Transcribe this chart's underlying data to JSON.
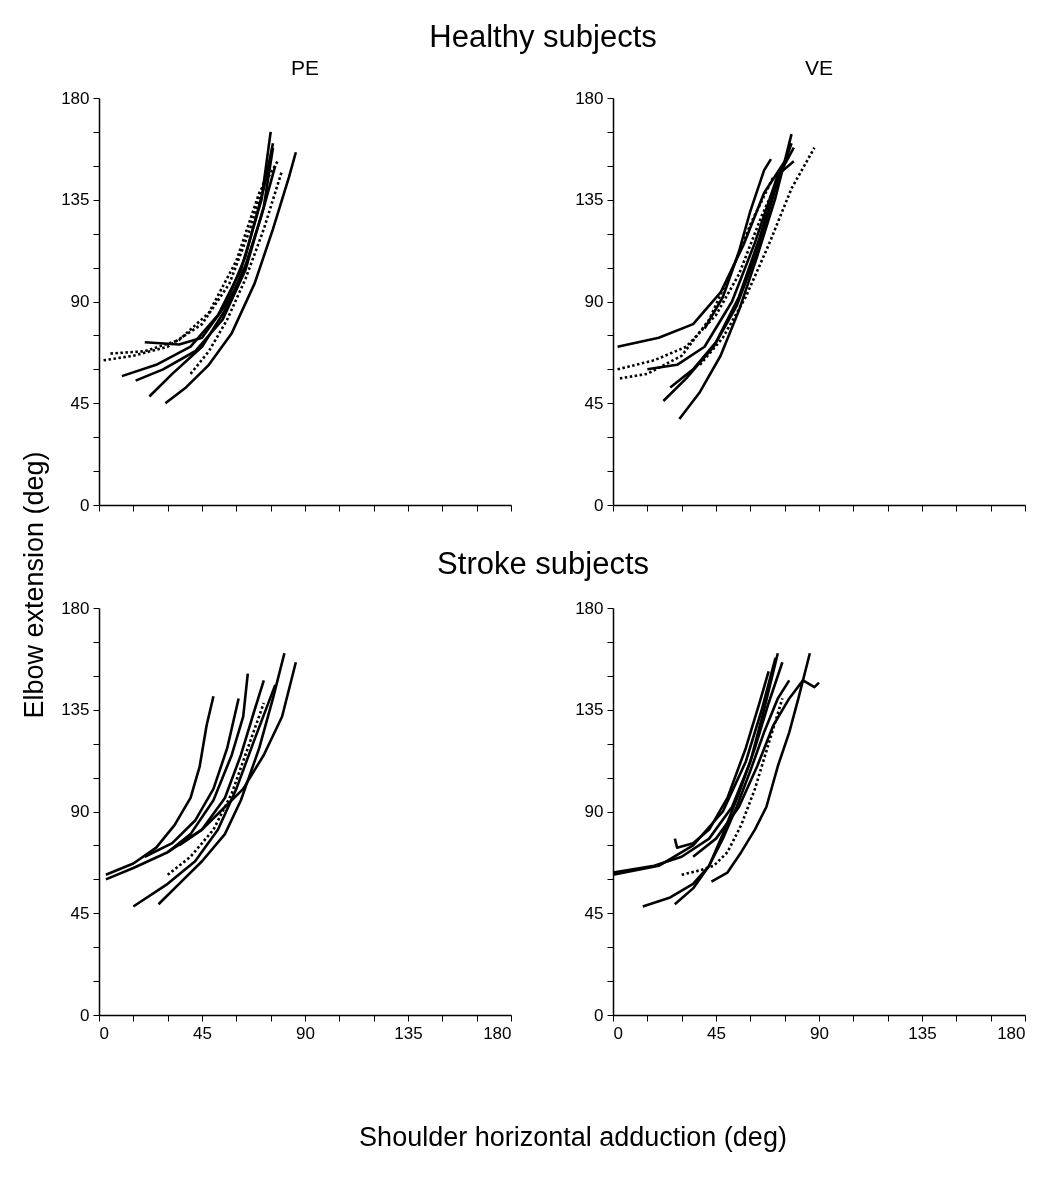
{
  "chart_data": [
    {
      "type": "line",
      "title": "PE",
      "annotations": [
        "Healthy subjects"
      ],
      "xlim": [
        0,
        180
      ],
      "ylim": [
        0,
        180
      ],
      "xticks": [
        0,
        {
          "value": 15,
          "label": null
        },
        {
          "value": 30,
          "label": null
        },
        45,
        {
          "value": 60,
          "label": null
        },
        {
          "value": 75,
          "label": null
        },
        90,
        {
          "value": 105,
          "label": null
        },
        {
          "value": 120,
          "label": null
        },
        135,
        {
          "value": 150,
          "label": null
        },
        {
          "value": 165,
          "label": null
        },
        180
      ],
      "yticks": [
        0,
        {
          "value": 15,
          "label": null
        },
        {
          "value": 30,
          "label": null
        },
        45,
        {
          "value": 60,
          "label": null
        },
        {
          "value": 75,
          "label": null
        },
        90,
        {
          "value": 105,
          "label": null
        },
        {
          "value": 120,
          "label": null
        },
        135,
        {
          "value": 150,
          "label": null
        },
        {
          "value": 165,
          "label": null
        },
        180
      ],
      "tick_labels": "y",
      "series": [
        {
          "color": "#000000",
          "line_style": "solid",
          "x": [
            29,
            38,
            48,
            58,
            68,
            76,
            83,
            86
          ],
          "values": [
            45,
            52,
            62,
            76,
            98,
            122,
            145,
            156
          ]
        },
        {
          "color": "#000000",
          "line_style": "solid",
          "x": [
            22,
            32,
            45,
            55,
            64,
            71,
            77
          ],
          "values": [
            48,
            58,
            70,
            86,
            106,
            128,
            150
          ]
        },
        {
          "color": "#000000",
          "line_style": "solid",
          "x": [
            16,
            28,
            42,
            54,
            64,
            72,
            76
          ],
          "values": [
            55,
            60,
            68,
            82,
            104,
            132,
            158
          ]
        },
        {
          "color": "#000000",
          "line_style": "solid",
          "x": [
            10,
            25,
            40,
            52,
            62,
            71,
            75
          ],
          "values": [
            57,
            62,
            70,
            84,
            104,
            135,
            165
          ]
        },
        {
          "color": "#000000",
          "line_style": "solid",
          "x": [
            20,
            35,
            45,
            55,
            64,
            72,
            76
          ],
          "values": [
            72,
            71,
            74,
            88,
            110,
            140,
            160
          ]
        },
        {
          "color": "#000000",
          "line_style": "dotted",
          "x": [
            2,
            15,
            30,
            45,
            57,
            66,
            74
          ],
          "values": [
            64,
            66,
            70,
            80,
            98,
            122,
            150
          ]
        },
        {
          "color": "#000000",
          "line_style": "dotted",
          "x": [
            5,
            20,
            35,
            48,
            60,
            70,
            78
          ],
          "values": [
            67,
            68,
            73,
            85,
            108,
            138,
            152
          ]
        },
        {
          "color": "#000000",
          "line_style": "dotted",
          "x": [
            40,
            48,
            56,
            64,
            72,
            80
          ],
          "values": [
            58,
            68,
            82,
            100,
            122,
            148
          ]
        }
      ]
    },
    {
      "type": "line",
      "title": "VE",
      "xlim": [
        0,
        180
      ],
      "ylim": [
        0,
        180
      ],
      "xticks": [
        0,
        {
          "value": 15,
          "label": null
        },
        {
          "value": 30,
          "label": null
        },
        45,
        {
          "value": 60,
          "label": null
        },
        {
          "value": 75,
          "label": null
        },
        90,
        {
          "value": 105,
          "label": null
        },
        {
          "value": 120,
          "label": null
        },
        135,
        {
          "value": 150,
          "label": null
        },
        {
          "value": 165,
          "label": null
        },
        180
      ],
      "yticks": [
        0,
        {
          "value": 15,
          "label": null
        },
        {
          "value": 30,
          "label": null
        },
        45,
        {
          "value": 60,
          "label": null
        },
        {
          "value": 75,
          "label": null
        },
        90,
        {
          "value": 105,
          "label": null
        },
        {
          "value": 120,
          "label": null
        },
        135,
        {
          "value": 150,
          "label": null
        },
        {
          "value": 165,
          "label": null
        },
        180
      ],
      "tick_labels": "y",
      "series": [
        {
          "color": "#000000",
          "line_style": "solid",
          "x": [
            29,
            38,
            47,
            55,
            63,
            71,
            78
          ],
          "values": [
            38,
            50,
            66,
            86,
            110,
            136,
            164
          ]
        },
        {
          "color": "#000000",
          "line_style": "solid",
          "x": [
            22,
            32,
            44,
            54,
            63,
            71,
            78
          ],
          "values": [
            46,
            56,
            70,
            88,
            112,
            140,
            160
          ]
        },
        {
          "color": "#000000",
          "line_style": "solid",
          "x": [
            25,
            35,
            45,
            55,
            64,
            72,
            79
          ],
          "values": [
            52,
            60,
            72,
            92,
            118,
            145,
            158
          ]
        },
        {
          "color": "#000000",
          "line_style": "solid",
          "x": [
            2,
            20,
            35,
            47,
            57,
            66,
            77
          ],
          "values": [
            70,
            74,
            80,
            94,
            115,
            138,
            155
          ]
        },
        {
          "color": "#000000",
          "line_style": "solid",
          "x": [
            15,
            28,
            40,
            52,
            62,
            72,
            79
          ],
          "values": [
            60,
            62,
            70,
            90,
            116,
            146,
            152
          ]
        },
        {
          "color": "#000000",
          "line_style": "solid",
          "x": [
            40,
            48,
            55,
            60,
            66,
            69
          ],
          "values": [
            78,
            92,
            112,
            130,
            148,
            153
          ]
        },
        {
          "color": "#000000",
          "line_style": "dotted",
          "x": [
            2,
            18,
            32,
            45,
            55,
            65,
            75
          ],
          "values": [
            60,
            64,
            70,
            84,
            102,
            128,
            150
          ]
        },
        {
          "color": "#000000",
          "line_style": "dotted",
          "x": [
            3,
            15,
            30,
            42,
            52,
            60,
            70
          ],
          "values": [
            56,
            58,
            66,
            82,
            104,
            124,
            145
          ]
        },
        {
          "color": "#000000",
          "line_style": "dotted",
          "x": [
            38,
            48,
            58,
            68,
            78,
            88
          ],
          "values": [
            62,
            74,
            92,
            115,
            140,
            158
          ]
        }
      ]
    },
    {
      "type": "line",
      "annotations": [
        "Stroke subjects"
      ],
      "xlabel": "Shoulder horizontal adduction (deg)",
      "ylabel": "Elbow extension (deg)",
      "xlim": [
        0,
        180
      ],
      "ylim": [
        0,
        180
      ],
      "xticks": [
        0,
        {
          "value": 15,
          "label": null
        },
        {
          "value": 30,
          "label": null
        },
        45,
        {
          "value": 60,
          "label": null
        },
        {
          "value": 75,
          "label": null
        },
        90,
        {
          "value": 105,
          "label": null
        },
        {
          "value": 120,
          "label": null
        },
        135,
        {
          "value": 150,
          "label": null
        },
        {
          "value": 165,
          "label": null
        },
        180
      ],
      "yticks": [
        0,
        {
          "value": 15,
          "label": null
        },
        {
          "value": 30,
          "label": null
        },
        45,
        {
          "value": 60,
          "label": null
        },
        {
          "value": 75,
          "label": null
        },
        90,
        {
          "value": 105,
          "label": null
        },
        {
          "value": 120,
          "label": null
        },
        135,
        {
          "value": 150,
          "label": null
        },
        {
          "value": 165,
          "label": null
        },
        180
      ],
      "series": [
        {
          "color": "#000000",
          "line_style": "solid",
          "x": [
            3,
            15,
            25,
            33,
            40,
            44,
            47,
            50
          ],
          "values": [
            62,
            67,
            74,
            84,
            96,
            110,
            128,
            141
          ]
        },
        {
          "color": "#000000",
          "line_style": "solid",
          "x": [
            3,
            15,
            30,
            45,
            55,
            62,
            68,
            72
          ],
          "values": [
            60,
            65,
            72,
            82,
            96,
            115,
            135,
            148
          ]
        },
        {
          "color": "#000000",
          "line_style": "solid",
          "x": [
            35,
            45,
            55,
            63,
            72,
            80,
            86
          ],
          "values": [
            75,
            82,
            92,
            100,
            115,
            132,
            156
          ]
        },
        {
          "color": "#000000",
          "line_style": "solid",
          "x": [
            15,
            30,
            42,
            52,
            60,
            68,
            77
          ],
          "values": [
            48,
            58,
            68,
            82,
            100,
            122,
            146
          ]
        },
        {
          "color": "#000000",
          "line_style": "solid",
          "x": [
            26,
            35,
            45,
            55,
            62,
            70,
            76,
            81
          ],
          "values": [
            49,
            58,
            68,
            80,
            95,
            118,
            140,
            160
          ]
        },
        {
          "color": "#000000",
          "line_style": "solid",
          "x": [
            30,
            40,
            50,
            58,
            63,
            65
          ],
          "values": [
            72,
            80,
            95,
            115,
            132,
            151
          ]
        },
        {
          "color": "#000000",
          "line_style": "solid",
          "x": [
            20,
            32,
            42,
            50,
            56,
            61
          ],
          "values": [
            70,
            76,
            86,
            100,
            118,
            140
          ]
        },
        {
          "color": "#000000",
          "line_style": "dotted",
          "x": [
            30,
            40,
            50,
            58,
            65,
            72
          ],
          "values": [
            62,
            70,
            82,
            98,
            118,
            138
          ]
        }
      ]
    },
    {
      "type": "line",
      "xlim": [
        0,
        180
      ],
      "ylim": [
        0,
        180
      ],
      "xticks": [
        0,
        {
          "value": 15,
          "label": null
        },
        {
          "value": 30,
          "label": null
        },
        45,
        {
          "value": 60,
          "label": null
        },
        {
          "value": 75,
          "label": null
        },
        90,
        {
          "value": 105,
          "label": null
        },
        {
          "value": 120,
          "label": null
        },
        135,
        {
          "value": 150,
          "label": null
        },
        {
          "value": 165,
          "label": null
        },
        180
      ],
      "yticks": [
        0,
        {
          "value": 15,
          "label": null
        },
        {
          "value": 30,
          "label": null
        },
        45,
        {
          "value": 60,
          "label": null
        },
        {
          "value": 75,
          "label": null
        },
        90,
        {
          "value": 105,
          "label": null
        },
        {
          "value": 120,
          "label": null
        },
        135,
        {
          "value": 150,
          "label": null
        },
        {
          "value": 165,
          "label": null
        },
        180
      ],
      "series": [
        {
          "color": "#000000",
          "line_style": "solid",
          "x": [
            0,
            20,
            35,
            48,
            58,
            65,
            71
          ],
          "values": [
            62,
            66,
            75,
            90,
            112,
            135,
            158
          ]
        },
        {
          "color": "#000000",
          "line_style": "solid",
          "x": [
            0,
            18,
            30,
            42,
            52,
            60,
            66,
            72
          ],
          "values": [
            63,
            66,
            70,
            78,
            92,
            112,
            135,
            160
          ]
        },
        {
          "color": "#000000",
          "line_style": "solid",
          "x": [
            13,
            25,
            35,
            42,
            48,
            54,
            60,
            66,
            72,
            77
          ],
          "values": [
            48,
            52,
            58,
            66,
            78,
            92,
            108,
            125,
            140,
            148
          ]
        },
        {
          "color": "#000000",
          "line_style": "solid",
          "x": [
            27,
            35,
            42,
            48,
            55,
            62,
            68,
            74
          ],
          "values": [
            49,
            56,
            66,
            80,
            98,
            118,
            138,
            156
          ]
        },
        {
          "color": "#000000",
          "line_style": "solid",
          "x": [
            43,
            50,
            56,
            62,
            67,
            72,
            77,
            81,
            86
          ],
          "values": [
            59,
            63,
            72,
            82,
            92,
            110,
            125,
            140,
            160
          ]
        },
        {
          "color": "#000000",
          "line_style": "solid",
          "x": [
            35,
            45,
            55,
            63,
            70,
            77,
            83,
            88,
            90
          ],
          "values": [
            70,
            78,
            92,
            110,
            128,
            140,
            148,
            145,
            147
          ]
        },
        {
          "color": "#000000",
          "line_style": "solid",
          "x": [
            27,
            28,
            35,
            42,
            50,
            58,
            64,
            68
          ],
          "values": [
            78,
            74,
            76,
            82,
            96,
            118,
            138,
            152
          ]
        },
        {
          "color": "#000000",
          "line_style": "dotted",
          "x": [
            30,
            38,
            44,
            50,
            56,
            62,
            68,
            74
          ],
          "values": [
            62,
            64,
            66,
            72,
            84,
            100,
            120,
            140
          ]
        }
      ]
    }
  ]
}
